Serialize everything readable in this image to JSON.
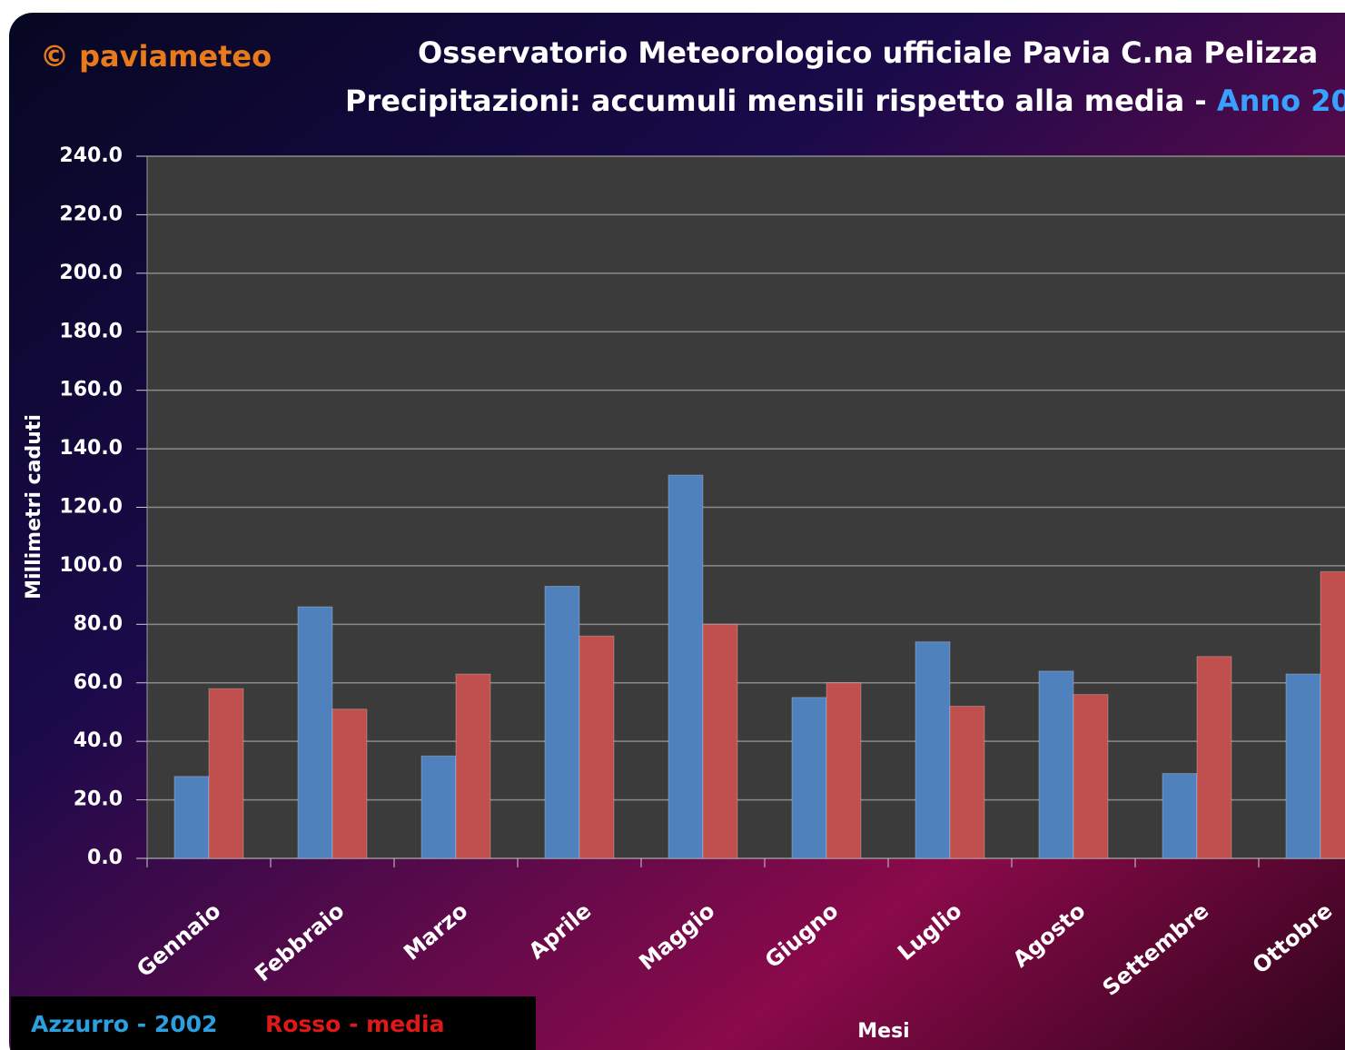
{
  "brand": "© paviameteo",
  "chart_data": {
    "type": "bar",
    "title": "Osservatorio Meteorologico ufficiale Pavia C.na Pelizza",
    "subtitle": "Precipitazioni: accumuli mensili rispetto alla media - ",
    "subtitle_year": "Anno 20",
    "x_label": "Mesi",
    "y_label": "Millimetri caduti",
    "categories": [
      "Gennaio",
      "Febbraio",
      "Marzo",
      "Aprile",
      "Maggio",
      "Giugno",
      "Luglio",
      "Agosto",
      "Settembre",
      "Ottobre"
    ],
    "series": [
      {
        "name": "Azzurro - 2002",
        "color": "#4f81bd",
        "values": [
          28,
          86,
          35,
          93,
          131,
          55,
          74,
          64,
          29,
          63
        ]
      },
      {
        "name": "Rosso - media",
        "color": "#c0504d",
        "values": [
          58,
          51,
          63,
          76,
          80,
          60,
          52,
          56,
          69,
          98
        ]
      }
    ],
    "ylim": [
      0,
      240
    ],
    "yticks": [
      {
        "value": 0,
        "label": "0.0"
      },
      {
        "value": 20,
        "label": "20.0"
      },
      {
        "value": 40,
        "label": "40.0"
      },
      {
        "value": 60,
        "label": "60.0"
      },
      {
        "value": 80,
        "label": "80.0"
      },
      {
        "value": 100,
        "label": "100.0"
      },
      {
        "value": 120,
        "label": "120.0"
      },
      {
        "value": 140,
        "label": "140.0"
      },
      {
        "value": 160,
        "label": "160.0"
      },
      {
        "value": 180,
        "label": "180.0"
      },
      {
        "value": 200,
        "label": "200.0"
      },
      {
        "value": 220,
        "label": "220.0"
      },
      {
        "value": 240,
        "label": "240.0"
      }
    ],
    "grid": true
  }
}
